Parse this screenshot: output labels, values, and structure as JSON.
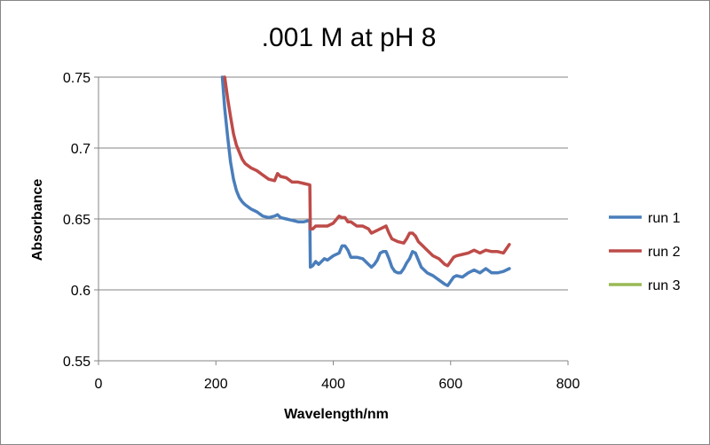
{
  "chart_data": {
    "type": "line",
    "title": ".001 M at pH 8",
    "xlabel": "Wavelength/nm",
    "ylabel": "Absorbance",
    "xlim": [
      0,
      800
    ],
    "ylim": [
      0.55,
      0.75
    ],
    "xticks": [
      0,
      200,
      400,
      600,
      800
    ],
    "yticks": [
      0.55,
      0.6,
      0.65,
      0.7,
      0.75
    ],
    "xtick_labels": [
      "0",
      "200",
      "400",
      "600",
      "800"
    ],
    "ytick_labels": [
      "0.55",
      "0.6",
      "0.65",
      "0.7",
      "0.75"
    ],
    "grid": "horizontal",
    "legend": "right",
    "series": [
      {
        "name": "run 1",
        "color": "#4a7ebb",
        "x": [
          211,
          215,
          220,
          225,
          230,
          235,
          240,
          245,
          250,
          260,
          270,
          280,
          290,
          300,
          305,
          310,
          320,
          330,
          340,
          350,
          360,
          361,
          365,
          370,
          375,
          380,
          385,
          390,
          400,
          410,
          415,
          420,
          425,
          430,
          440,
          450,
          460,
          465,
          470,
          475,
          480,
          485,
          490,
          495,
          500,
          505,
          510,
          515,
          520,
          525,
          530,
          535,
          540,
          545,
          550,
          560,
          570,
          580,
          590,
          595,
          600,
          605,
          610,
          620,
          630,
          640,
          650,
          660,
          670,
          680,
          690,
          700
        ],
        "y": [
          0.75,
          0.728,
          0.708,
          0.69,
          0.678,
          0.67,
          0.665,
          0.662,
          0.66,
          0.657,
          0.655,
          0.652,
          0.651,
          0.652,
          0.653,
          0.651,
          0.65,
          0.649,
          0.648,
          0.648,
          0.649,
          0.616,
          0.617,
          0.62,
          0.618,
          0.62,
          0.622,
          0.621,
          0.624,
          0.626,
          0.631,
          0.631,
          0.628,
          0.623,
          0.623,
          0.622,
          0.618,
          0.616,
          0.618,
          0.621,
          0.626,
          0.627,
          0.627,
          0.622,
          0.616,
          0.613,
          0.612,
          0.612,
          0.615,
          0.619,
          0.622,
          0.627,
          0.626,
          0.621,
          0.616,
          0.612,
          0.61,
          0.607,
          0.604,
          0.603,
          0.606,
          0.609,
          0.61,
          0.609,
          0.612,
          0.614,
          0.612,
          0.615,
          0.612,
          0.612,
          0.613,
          0.615
        ]
      },
      {
        "name": "run 2",
        "color": "#be4b48",
        "x": [
          215,
          220,
          225,
          230,
          235,
          240,
          245,
          250,
          260,
          270,
          280,
          290,
          300,
          305,
          310,
          320,
          330,
          340,
          350,
          360,
          361,
          365,
          370,
          380,
          390,
          400,
          410,
          415,
          420,
          425,
          430,
          440,
          450,
          460,
          465,
          470,
          480,
          490,
          495,
          500,
          510,
          520,
          525,
          530,
          535,
          540,
          545,
          550,
          560,
          570,
          580,
          590,
          595,
          600,
          605,
          610,
          620,
          630,
          640,
          650,
          660,
          670,
          680,
          690,
          700
        ],
        "y": [
          0.75,
          0.735,
          0.722,
          0.71,
          0.702,
          0.697,
          0.692,
          0.689,
          0.686,
          0.684,
          0.681,
          0.678,
          0.677,
          0.682,
          0.68,
          0.679,
          0.676,
          0.676,
          0.675,
          0.674,
          0.643,
          0.643,
          0.645,
          0.645,
          0.645,
          0.647,
          0.652,
          0.651,
          0.651,
          0.648,
          0.648,
          0.645,
          0.645,
          0.643,
          0.64,
          0.641,
          0.643,
          0.645,
          0.64,
          0.636,
          0.634,
          0.633,
          0.636,
          0.64,
          0.64,
          0.638,
          0.634,
          0.632,
          0.628,
          0.624,
          0.622,
          0.618,
          0.617,
          0.62,
          0.623,
          0.624,
          0.625,
          0.626,
          0.628,
          0.626,
          0.628,
          0.627,
          0.627,
          0.626,
          0.632
        ]
      },
      {
        "name": "run 3",
        "color": "#98b954",
        "x": [],
        "y": []
      }
    ]
  }
}
